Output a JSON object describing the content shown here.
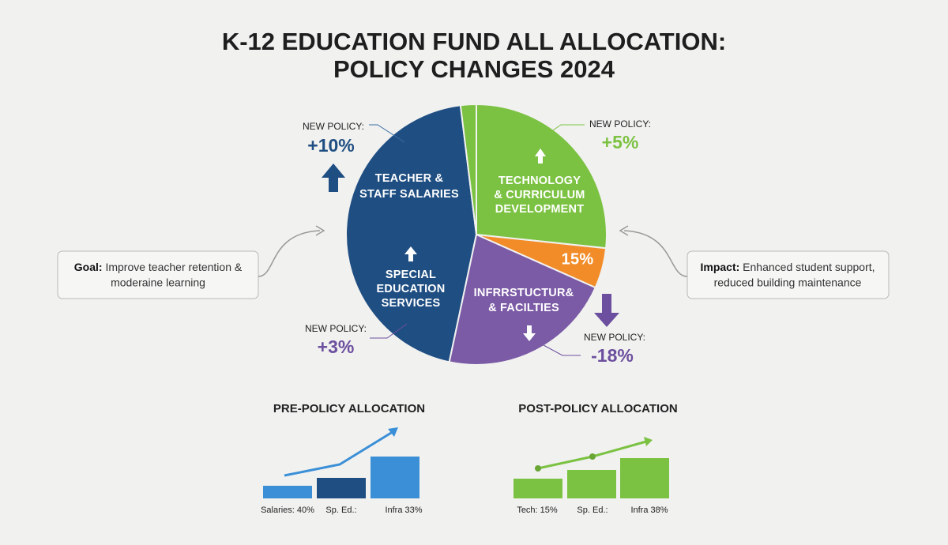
{
  "title_lines": [
    "K-12 EDUCATION FUND ALL ALLOCATION:",
    "POLICY CHANGES 2024"
  ],
  "pie": {
    "segments": [
      {
        "lines": [
          "TEACHER &",
          "STAFF SALARIES"
        ]
      },
      {
        "lines": [
          "SPECIAL",
          "EDUCATION",
          "SERVICES"
        ]
      },
      {
        "lines": [
          "TECHNOLOGY",
          "& CURRICULUM",
          "DEVELOPMENT"
        ]
      },
      {
        "lines": [
          "15%"
        ]
      },
      {
        "lines": [
          "INFRRSTUCTUR&",
          "& FACILTIES"
        ]
      }
    ]
  },
  "callouts": [
    {
      "label": "NEW POLICY:",
      "value": "+10%"
    },
    {
      "label": "NEW POLICY:",
      "value": "+5%"
    },
    {
      "label": "NEW POLICY:",
      "value": "+3%"
    },
    {
      "label": "NEW POLICY:",
      "value": "-18%"
    }
  ],
  "goal": {
    "label": "Goal:",
    "lines": [
      "Improve teacher retention &",
      "moderaine learning"
    ]
  },
  "impact": {
    "label": "Impact:",
    "lines": [
      "Enhanced student support,",
      "reduced building maintenance"
    ]
  },
  "mini_charts": [
    {
      "title": "PRE-POLICY ALLOCATION",
      "labels": [
        "Salaries: 40%",
        "Sp. Ed.:",
        "Infra 33%"
      ]
    },
    {
      "title": "POST-POLICY ALLOCATION",
      "labels": [
        "Tech: 15%",
        "Sp. Ed.:",
        "Infra 38%"
      ]
    }
  ]
}
